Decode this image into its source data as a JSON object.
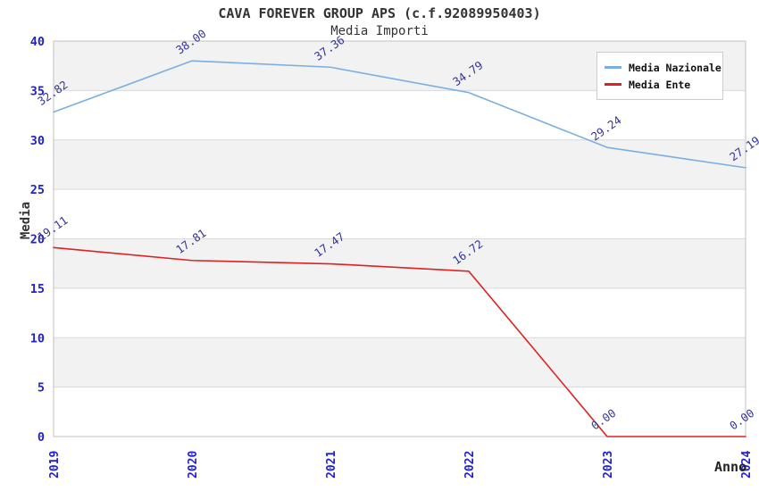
{
  "header": {
    "title": "CAVA FOREVER GROUP APS (c.f.92089950403)",
    "subtitle": "Media Importi"
  },
  "chart_data": {
    "type": "line",
    "title": "CAVA FOREVER GROUP APS (c.f.92089950403)",
    "subtitle": "Media Importi",
    "xlabel": "Anno",
    "ylabel": "Media",
    "x": [
      2019,
      2020,
      2021,
      2022,
      2023,
      2024
    ],
    "series": [
      {
        "name": "Media Nazionale",
        "color": "#7aafe0",
        "values": [
          32.82,
          38.0,
          37.36,
          34.79,
          29.24,
          27.19
        ]
      },
      {
        "name": "Media Ente",
        "color": "#dd2222",
        "values": [
          19.11,
          17.81,
          17.47,
          16.72,
          0.0,
          0.0
        ]
      }
    ],
    "ylim": [
      0,
      40
    ],
    "yticks": [
      0,
      5,
      10,
      15,
      20,
      25,
      30,
      35,
      40
    ],
    "grid": "horizontal gridlines with alternating shaded bands",
    "legend_position": "top-right",
    "point_labels_visible": true,
    "colors": {
      "tick_label": "#2222cc",
      "point_label": "#333399",
      "grid_line": "#d9d9d9",
      "band_fill": "#f2f2f2",
      "plot_border": "#c0c0c0",
      "title_text": "#333333",
      "axis_label_text": "#222222"
    }
  }
}
